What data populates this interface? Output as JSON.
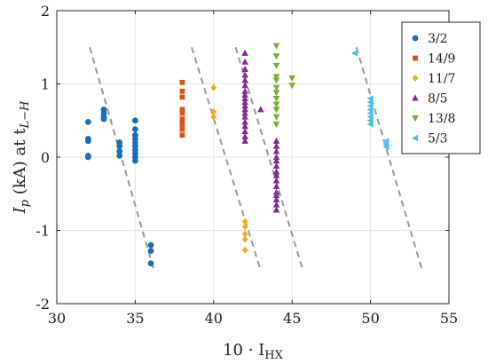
{
  "chart_data": {
    "type": "scatter",
    "title": "",
    "xlabel": {
      "main": "10 · I",
      "sub": "HX"
    },
    "ylabel": {
      "main": "I",
      "sub_p": "p",
      "middle": " (kA) at t",
      "sub_lh": "L−H"
    },
    "xlim": [
      30,
      55
    ],
    "ylim": [
      -2,
      2
    ],
    "x_ticks": [
      "30",
      "35",
      "40",
      "45",
      "50",
      "55"
    ],
    "y_ticks": [
      "-2",
      "-1",
      "0",
      "1",
      "2"
    ],
    "grid": true,
    "legend_position": "top-right",
    "series": [
      {
        "name": "3/2",
        "color": "#1a6fb5",
        "marker": "circle",
        "points": [
          [
            32,
            0.48
          ],
          [
            32,
            0.25
          ],
          [
            32,
            0.22
          ],
          [
            32,
            0.0
          ],
          [
            32,
            0.02
          ],
          [
            33,
            0.52
          ],
          [
            33,
            0.55
          ],
          [
            33,
            0.6
          ],
          [
            33,
            0.65
          ],
          [
            34,
            0.2
          ],
          [
            34,
            0.15
          ],
          [
            34,
            0.08
          ],
          [
            34,
            0.02
          ],
          [
            35,
            0.5
          ],
          [
            35,
            0.38
          ],
          [
            35,
            0.3
          ],
          [
            35,
            0.25
          ],
          [
            35,
            0.2
          ],
          [
            35,
            0.15
          ],
          [
            35,
            0.1
          ],
          [
            35,
            0.05
          ],
          [
            35,
            0.0
          ],
          [
            35,
            -0.05
          ],
          [
            36,
            -1.2
          ],
          [
            36,
            -1.28
          ],
          [
            36,
            -1.45
          ]
        ]
      },
      {
        "name": "14/9",
        "color": "#d95319",
        "marker": "square",
        "points": [
          [
            38,
            1.02
          ],
          [
            38,
            0.9
          ],
          [
            38,
            0.82
          ],
          [
            38,
            0.65
          ],
          [
            38,
            0.6
          ],
          [
            38,
            0.52
          ],
          [
            38,
            0.45
          ],
          [
            38,
            0.38
          ],
          [
            38,
            0.3
          ]
        ]
      },
      {
        "name": "11/7",
        "color": "#edb120",
        "marker": "diamond",
        "points": [
          [
            40,
            0.95
          ],
          [
            40,
            0.62
          ],
          [
            40,
            0.55
          ],
          [
            42,
            -0.88
          ],
          [
            42,
            -0.95
          ],
          [
            42,
            -1.05
          ],
          [
            42,
            -1.12
          ],
          [
            42,
            -1.27
          ]
        ]
      },
      {
        "name": "8/5",
        "color": "#7e2f8e",
        "marker": "triangle-up",
        "points": [
          [
            42,
            1.42
          ],
          [
            42,
            1.3
          ],
          [
            42,
            1.2
          ],
          [
            42,
            1.12
          ],
          [
            42,
            1.05
          ],
          [
            42,
            0.98
          ],
          [
            42,
            0.9
          ],
          [
            42,
            0.85
          ],
          [
            42,
            0.8
          ],
          [
            42,
            0.75
          ],
          [
            42,
            0.7
          ],
          [
            42,
            0.65
          ],
          [
            42,
            0.6
          ],
          [
            42,
            0.55
          ],
          [
            42,
            0.48
          ],
          [
            42,
            0.42
          ],
          [
            42,
            0.35
          ],
          [
            42,
            0.28
          ],
          [
            42,
            0.22
          ],
          [
            43,
            0.65
          ],
          [
            44,
            0.22
          ],
          [
            44,
            0.15
          ],
          [
            44,
            0.08
          ],
          [
            44,
            0.0
          ],
          [
            44,
            -0.05
          ],
          [
            44,
            -0.12
          ],
          [
            44,
            -0.2
          ],
          [
            44,
            -0.25
          ],
          [
            44,
            -0.32
          ],
          [
            44,
            -0.4
          ],
          [
            44,
            -0.48
          ],
          [
            44,
            -0.52
          ],
          [
            44,
            -0.58
          ],
          [
            44,
            -0.65
          ],
          [
            44,
            -0.72
          ]
        ]
      },
      {
        "name": "13/8",
        "color": "#77ac30",
        "marker": "triangle-down",
        "points": [
          [
            44,
            1.52
          ],
          [
            44,
            1.38
          ],
          [
            44,
            1.25
          ],
          [
            44,
            1.1
          ],
          [
            44,
            1.05
          ],
          [
            44,
            0.95
          ],
          [
            44,
            0.88
          ],
          [
            44,
            0.8
          ],
          [
            44,
            0.72
          ],
          [
            44,
            0.65
          ],
          [
            44,
            0.55
          ],
          [
            44,
            0.45
          ],
          [
            45,
            1.08
          ],
          [
            45,
            0.98
          ]
        ]
      },
      {
        "name": "5/3",
        "color": "#4dbeee",
        "marker": "triangle-left",
        "points": [
          [
            49,
            1.42
          ],
          [
            50,
            0.8
          ],
          [
            50,
            0.75
          ],
          [
            50,
            0.7
          ],
          [
            50,
            0.65
          ],
          [
            50,
            0.6
          ],
          [
            50,
            0.55
          ],
          [
            50,
            0.5
          ],
          [
            50,
            0.45
          ],
          [
            51,
            0.22
          ],
          [
            51,
            0.18
          ],
          [
            51,
            0.14
          ]
        ]
      }
    ],
    "reference_lines": [
      {
        "color": "#9a9a9a",
        "style": "dashed",
        "from": [
          32.1,
          1.5
        ],
        "to": [
          36.2,
          -1.55
        ]
      },
      {
        "color": "#9a9a9a",
        "style": "dashed",
        "from": [
          38.6,
          1.5
        ],
        "to": [
          43.0,
          -1.55
        ]
      },
      {
        "color": "#9a9a9a",
        "style": "dashed",
        "from": [
          41.4,
          1.5
        ],
        "to": [
          45.7,
          -1.55
        ]
      },
      {
        "color": "#9a9a9a",
        "style": "dashed",
        "from": [
          49.1,
          1.5
        ],
        "to": [
          53.3,
          -1.55
        ]
      }
    ]
  }
}
